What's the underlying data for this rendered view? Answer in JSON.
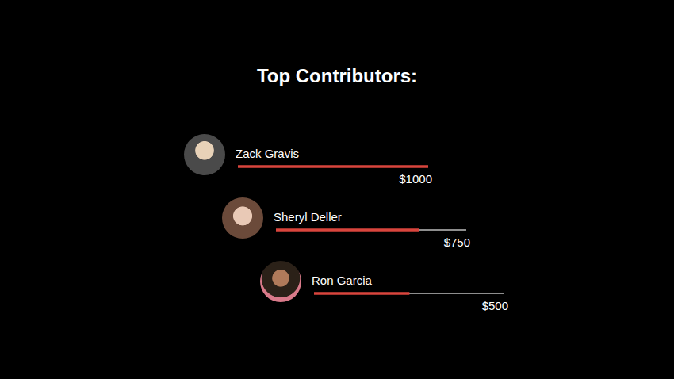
{
  "chart_data": {
    "type": "bar",
    "title": "Top Contributors:",
    "orientation": "horizontal",
    "categories": [
      "Zack Gravis",
      "Sheryl Deller",
      "Ron Garcia"
    ],
    "values": [
      1000,
      750,
      500
    ],
    "value_labels": [
      "$1000",
      "$750",
      "$500"
    ],
    "data_labels": true,
    "color": "#d9453d",
    "xlim": [
      0,
      1000
    ],
    "tick_labels": false,
    "grid": false
  }
}
